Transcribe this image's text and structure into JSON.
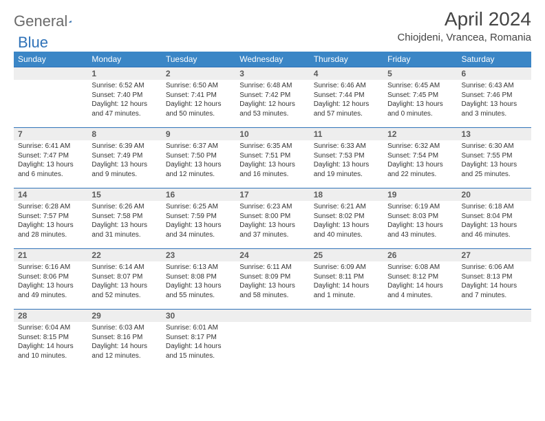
{
  "brand": {
    "part1": "General",
    "part2": "Blue"
  },
  "title": "April 2024",
  "location": "Chiojdeni, Vrancea, Romania",
  "colors": {
    "header_bg": "#3b86c6",
    "header_text": "#ffffff",
    "daynum_bg": "#eeeeee",
    "daynum_border": "#2f72b8",
    "body_text": "#333333",
    "brand_gray": "#6a6a6a",
    "brand_blue": "#2f72b8",
    "page_bg": "#ffffff"
  },
  "weekdays": [
    "Sunday",
    "Monday",
    "Tuesday",
    "Wednesday",
    "Thursday",
    "Friday",
    "Saturday"
  ],
  "layout": {
    "first_weekday_offset": 1,
    "days_in_month": 30,
    "rows": 5,
    "cols": 7
  },
  "days": {
    "1": {
      "sunrise": "6:52 AM",
      "sunset": "7:40 PM",
      "daylight": "12 hours and 47 minutes."
    },
    "2": {
      "sunrise": "6:50 AM",
      "sunset": "7:41 PM",
      "daylight": "12 hours and 50 minutes."
    },
    "3": {
      "sunrise": "6:48 AM",
      "sunset": "7:42 PM",
      "daylight": "12 hours and 53 minutes."
    },
    "4": {
      "sunrise": "6:46 AM",
      "sunset": "7:44 PM",
      "daylight": "12 hours and 57 minutes."
    },
    "5": {
      "sunrise": "6:45 AM",
      "sunset": "7:45 PM",
      "daylight": "13 hours and 0 minutes."
    },
    "6": {
      "sunrise": "6:43 AM",
      "sunset": "7:46 PM",
      "daylight": "13 hours and 3 minutes."
    },
    "7": {
      "sunrise": "6:41 AM",
      "sunset": "7:47 PM",
      "daylight": "13 hours and 6 minutes."
    },
    "8": {
      "sunrise": "6:39 AM",
      "sunset": "7:49 PM",
      "daylight": "13 hours and 9 minutes."
    },
    "9": {
      "sunrise": "6:37 AM",
      "sunset": "7:50 PM",
      "daylight": "13 hours and 12 minutes."
    },
    "10": {
      "sunrise": "6:35 AM",
      "sunset": "7:51 PM",
      "daylight": "13 hours and 16 minutes."
    },
    "11": {
      "sunrise": "6:33 AM",
      "sunset": "7:53 PM",
      "daylight": "13 hours and 19 minutes."
    },
    "12": {
      "sunrise": "6:32 AM",
      "sunset": "7:54 PM",
      "daylight": "13 hours and 22 minutes."
    },
    "13": {
      "sunrise": "6:30 AM",
      "sunset": "7:55 PM",
      "daylight": "13 hours and 25 minutes."
    },
    "14": {
      "sunrise": "6:28 AM",
      "sunset": "7:57 PM",
      "daylight": "13 hours and 28 minutes."
    },
    "15": {
      "sunrise": "6:26 AM",
      "sunset": "7:58 PM",
      "daylight": "13 hours and 31 minutes."
    },
    "16": {
      "sunrise": "6:25 AM",
      "sunset": "7:59 PM",
      "daylight": "13 hours and 34 minutes."
    },
    "17": {
      "sunrise": "6:23 AM",
      "sunset": "8:00 PM",
      "daylight": "13 hours and 37 minutes."
    },
    "18": {
      "sunrise": "6:21 AM",
      "sunset": "8:02 PM",
      "daylight": "13 hours and 40 minutes."
    },
    "19": {
      "sunrise": "6:19 AM",
      "sunset": "8:03 PM",
      "daylight": "13 hours and 43 minutes."
    },
    "20": {
      "sunrise": "6:18 AM",
      "sunset": "8:04 PM",
      "daylight": "13 hours and 46 minutes."
    },
    "21": {
      "sunrise": "6:16 AM",
      "sunset": "8:06 PM",
      "daylight": "13 hours and 49 minutes."
    },
    "22": {
      "sunrise": "6:14 AM",
      "sunset": "8:07 PM",
      "daylight": "13 hours and 52 minutes."
    },
    "23": {
      "sunrise": "6:13 AM",
      "sunset": "8:08 PM",
      "daylight": "13 hours and 55 minutes."
    },
    "24": {
      "sunrise": "6:11 AM",
      "sunset": "8:09 PM",
      "daylight": "13 hours and 58 minutes."
    },
    "25": {
      "sunrise": "6:09 AM",
      "sunset": "8:11 PM",
      "daylight": "14 hours and 1 minute."
    },
    "26": {
      "sunrise": "6:08 AM",
      "sunset": "8:12 PM",
      "daylight": "14 hours and 4 minutes."
    },
    "27": {
      "sunrise": "6:06 AM",
      "sunset": "8:13 PM",
      "daylight": "14 hours and 7 minutes."
    },
    "28": {
      "sunrise": "6:04 AM",
      "sunset": "8:15 PM",
      "daylight": "14 hours and 10 minutes."
    },
    "29": {
      "sunrise": "6:03 AM",
      "sunset": "8:16 PM",
      "daylight": "14 hours and 12 minutes."
    },
    "30": {
      "sunrise": "6:01 AM",
      "sunset": "8:17 PM",
      "daylight": "14 hours and 15 minutes."
    }
  },
  "labels": {
    "sunrise": "Sunrise:",
    "sunset": "Sunset:",
    "daylight": "Daylight:"
  }
}
